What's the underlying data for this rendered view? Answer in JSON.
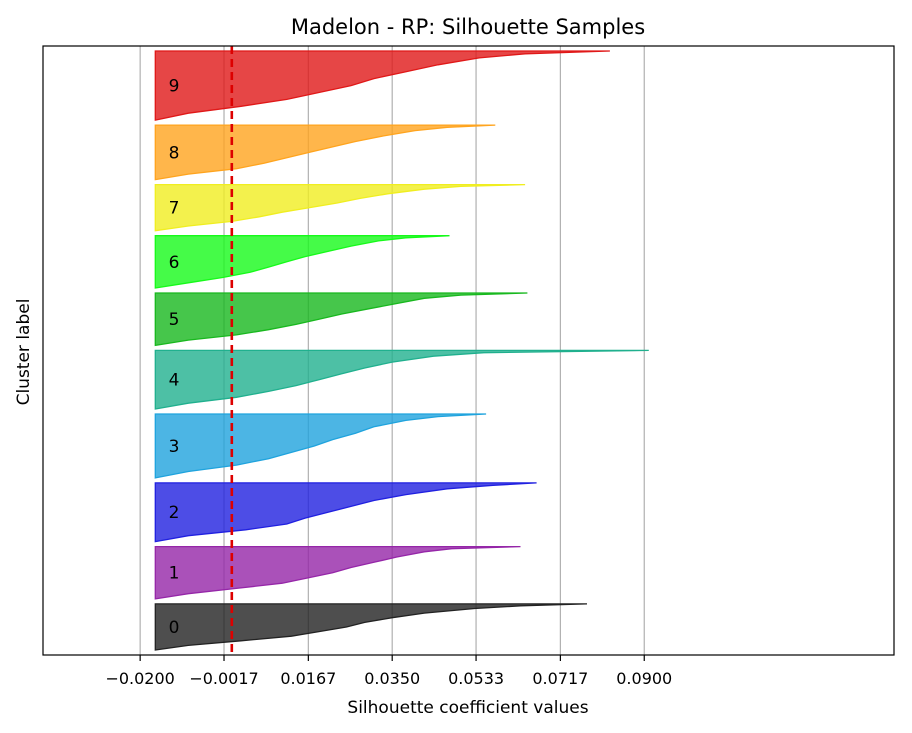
{
  "chart_data": {
    "type": "area",
    "title": "Madelon - RP: Silhouette Samples",
    "xlabel": "Silhouette coefficient values",
    "ylabel": "Cluster label",
    "xlim": [
      -0.0412,
      0.1445
    ],
    "x_ticks": [
      -0.02,
      -0.0017,
      0.0167,
      0.035,
      0.0533,
      0.0717,
      0.09
    ],
    "x_tick_labels": [
      "−0.0200",
      "−0.0017",
      "0.0167",
      "0.0350",
      "0.0533",
      "0.0717",
      "0.0900"
    ],
    "grid": {
      "x": true,
      "y": false
    },
    "average_silhouette": 0.0,
    "average_line_color": "#dd0000",
    "clusters": [
      {
        "label": "0",
        "color": "#222222",
        "min": -0.0167,
        "max": 0.0775,
        "size": 88,
        "profile": [
          [
            0,
            -0.0167
          ],
          [
            0.1,
            -0.0095
          ],
          [
            0.2,
            0.002
          ],
          [
            0.3,
            0.013
          ],
          [
            0.4,
            0.019
          ],
          [
            0.5,
            0.025
          ],
          [
            0.6,
            0.029
          ],
          [
            0.7,
            0.035
          ],
          [
            0.8,
            0.042
          ],
          [
            0.9,
            0.053
          ],
          [
            0.96,
            0.063
          ],
          [
            1.0,
            0.0775
          ]
        ]
      },
      {
        "label": "1",
        "color": "#9526a8",
        "min": -0.0167,
        "max": 0.063,
        "size": 100,
        "profile": [
          [
            0,
            -0.0167
          ],
          [
            0.1,
            -0.0095
          ],
          [
            0.2,
            0.001
          ],
          [
            0.3,
            0.011
          ],
          [
            0.4,
            0.0165
          ],
          [
            0.5,
            0.022
          ],
          [
            0.6,
            0.026
          ],
          [
            0.7,
            0.031
          ],
          [
            0.8,
            0.036
          ],
          [
            0.9,
            0.042
          ],
          [
            0.96,
            0.048
          ],
          [
            1.0,
            0.063
          ]
        ]
      },
      {
        "label": "2",
        "color": "#2020e0",
        "min": -0.0167,
        "max": 0.0665,
        "size": 112,
        "profile": [
          [
            0,
            -0.0167
          ],
          [
            0.1,
            -0.0095
          ],
          [
            0.2,
            0.003
          ],
          [
            0.3,
            0.012
          ],
          [
            0.4,
            0.016
          ],
          [
            0.5,
            0.021
          ],
          [
            0.6,
            0.026
          ],
          [
            0.7,
            0.031
          ],
          [
            0.8,
            0.038
          ],
          [
            0.9,
            0.047
          ],
          [
            0.96,
            0.057
          ],
          [
            1.0,
            0.0665
          ]
        ]
      },
      {
        "label": "3",
        "color": "#1fa3dd",
        "min": -0.0167,
        "max": 0.0555,
        "size": 122,
        "profile": [
          [
            0,
            -0.0167
          ],
          [
            0.1,
            -0.0095
          ],
          [
            0.2,
            0.001
          ],
          [
            0.3,
            0.008
          ],
          [
            0.4,
            0.013
          ],
          [
            0.5,
            0.018
          ],
          [
            0.6,
            0.022
          ],
          [
            0.7,
            0.027
          ],
          [
            0.8,
            0.031
          ],
          [
            0.9,
            0.038
          ],
          [
            0.96,
            0.045
          ],
          [
            1.0,
            0.0555
          ]
        ]
      },
      {
        "label": "4",
        "color": "#20b08e",
        "min": -0.0167,
        "max": 0.091,
        "size": 112,
        "profile": [
          [
            0,
            -0.0167
          ],
          [
            0.1,
            -0.0095
          ],
          [
            0.2,
            0.001
          ],
          [
            0.3,
            0.008
          ],
          [
            0.4,
            0.014
          ],
          [
            0.5,
            0.019
          ],
          [
            0.6,
            0.024
          ],
          [
            0.7,
            0.029
          ],
          [
            0.8,
            0.035
          ],
          [
            0.9,
            0.044
          ],
          [
            0.96,
            0.055
          ],
          [
            1.0,
            0.091
          ]
        ]
      },
      {
        "label": "5",
        "color": "#18b81e",
        "min": -0.0167,
        "max": 0.0645,
        "size": 100,
        "profile": [
          [
            0,
            -0.0167
          ],
          [
            0.1,
            -0.0095
          ],
          [
            0.2,
            0.001
          ],
          [
            0.3,
            0.008
          ],
          [
            0.4,
            0.014
          ],
          [
            0.5,
            0.019
          ],
          [
            0.6,
            0.024
          ],
          [
            0.7,
            0.03
          ],
          [
            0.8,
            0.036
          ],
          [
            0.9,
            0.042
          ],
          [
            0.96,
            0.05
          ],
          [
            1.0,
            0.0645
          ]
        ]
      },
      {
        "label": "6",
        "color": "#16fa1a",
        "min": -0.0167,
        "max": 0.0475,
        "size": 100,
        "profile": [
          [
            0,
            -0.0167
          ],
          [
            0.1,
            -0.0095
          ],
          [
            0.2,
            -0.002
          ],
          [
            0.3,
            0.004
          ],
          [
            0.4,
            0.008
          ],
          [
            0.5,
            0.012
          ],
          [
            0.6,
            0.016
          ],
          [
            0.7,
            0.021
          ],
          [
            0.8,
            0.026
          ],
          [
            0.9,
            0.032
          ],
          [
            0.96,
            0.038
          ],
          [
            1.0,
            0.0475
          ]
        ]
      },
      {
        "label": "7",
        "color": "#f0ee20",
        "min": -0.0167,
        "max": 0.064,
        "size": 88,
        "profile": [
          [
            0,
            -0.0167
          ],
          [
            0.1,
            -0.0095
          ],
          [
            0.2,
            0.0
          ],
          [
            0.3,
            0.006
          ],
          [
            0.4,
            0.011
          ],
          [
            0.5,
            0.017
          ],
          [
            0.6,
            0.023
          ],
          [
            0.7,
            0.028
          ],
          [
            0.8,
            0.034
          ],
          [
            0.9,
            0.042
          ],
          [
            0.96,
            0.05
          ],
          [
            1.0,
            0.064
          ]
        ]
      },
      {
        "label": "8",
        "color": "#ffa41e",
        "min": -0.0167,
        "max": 0.0575,
        "size": 104,
        "profile": [
          [
            0,
            -0.0167
          ],
          [
            0.1,
            -0.0095
          ],
          [
            0.2,
            0.001
          ],
          [
            0.3,
            0.007
          ],
          [
            0.4,
            0.012
          ],
          [
            0.5,
            0.017
          ],
          [
            0.6,
            0.022
          ],
          [
            0.7,
            0.027
          ],
          [
            0.8,
            0.033
          ],
          [
            0.9,
            0.04
          ],
          [
            0.96,
            0.047
          ],
          [
            1.0,
            0.0575
          ]
        ]
      },
      {
        "label": "9",
        "color": "#e01818",
        "min": -0.0167,
        "max": 0.0825,
        "size": 132,
        "profile": [
          [
            0,
            -0.0167
          ],
          [
            0.1,
            -0.0095
          ],
          [
            0.2,
            0.002
          ],
          [
            0.3,
            0.012
          ],
          [
            0.4,
            0.019
          ],
          [
            0.5,
            0.026
          ],
          [
            0.6,
            0.031
          ],
          [
            0.7,
            0.038
          ],
          [
            0.8,
            0.045
          ],
          [
            0.9,
            0.054
          ],
          [
            0.96,
            0.064
          ],
          [
            1.0,
            0.0825
          ]
        ]
      }
    ]
  }
}
